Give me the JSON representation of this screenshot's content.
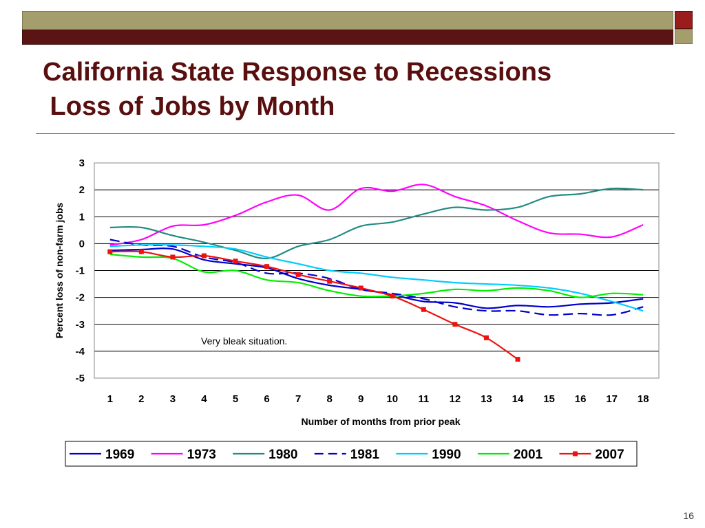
{
  "slide": {
    "title_line1": "California State Response to Recessions",
    "title_line2": " Loss of Jobs by Month",
    "page_number": "16"
  },
  "chart_data": {
    "type": "line",
    "title": "",
    "xlabel": "Number of months from prior peak",
    "ylabel": "Percent loss of non-farm jobs",
    "categories": [
      "1",
      "2",
      "3",
      "4",
      "5",
      "6",
      "7",
      "8",
      "9",
      "10",
      "11",
      "12",
      "13",
      "14",
      "15",
      "16",
      "17",
      "18"
    ],
    "ylim": [
      -5,
      3
    ],
    "yticks": [
      3,
      2,
      1,
      0,
      -1,
      -2,
      -3,
      -4,
      -5
    ],
    "grid": "horizontal",
    "legend_position": "bottom",
    "annotation": "Very bleak situation.",
    "series": [
      {
        "name": "1969",
        "color": "#0000cc",
        "dash": "solid",
        "marker": "none",
        "values": [
          -0.25,
          -0.22,
          -0.2,
          -0.6,
          -0.75,
          -0.9,
          -1.3,
          -1.55,
          -1.7,
          -1.9,
          -2.15,
          -2.2,
          -2.4,
          -2.3,
          -2.35,
          -2.25,
          -2.2,
          -2.05
        ]
      },
      {
        "name": "1973",
        "color": "#ff00ff",
        "dash": "solid",
        "marker": "none",
        "values": [
          -0.05,
          0.15,
          0.65,
          0.7,
          1.05,
          1.55,
          1.8,
          1.25,
          2.05,
          1.95,
          2.2,
          1.75,
          1.4,
          0.85,
          0.4,
          0.35,
          0.25,
          0.7
        ]
      },
      {
        "name": "1980",
        "color": "#218b82",
        "dash": "solid",
        "marker": "none",
        "values": [
          0.6,
          0.6,
          0.3,
          0.05,
          -0.25,
          -0.55,
          -0.1,
          0.15,
          0.65,
          0.8,
          1.1,
          1.35,
          1.25,
          1.35,
          1.75,
          1.85,
          2.05,
          2.0
        ]
      },
      {
        "name": "1981",
        "color": "#0000cc",
        "dash": "dashed",
        "marker": "none",
        "values": [
          0.15,
          -0.05,
          -0.1,
          -0.5,
          -0.7,
          -1.1,
          -1.1,
          -1.3,
          -1.7,
          -1.85,
          -2.05,
          -2.35,
          -2.5,
          -2.5,
          -2.65,
          -2.6,
          -2.65,
          -2.35
        ]
      },
      {
        "name": "1990",
        "color": "#00ccff",
        "dash": "solid",
        "marker": "none",
        "values": [
          -0.1,
          -0.05,
          -0.05,
          -0.1,
          -0.2,
          -0.5,
          -0.75,
          -1.0,
          -1.1,
          -1.25,
          -1.35,
          -1.45,
          -1.5,
          -1.55,
          -1.65,
          -1.85,
          -2.15,
          -2.5
        ]
      },
      {
        "name": "2001",
        "color": "#00ee00",
        "dash": "solid",
        "marker": "none",
        "values": [
          -0.4,
          -0.5,
          -0.55,
          -1.05,
          -1.0,
          -1.35,
          -1.45,
          -1.75,
          -1.95,
          -1.95,
          -1.85,
          -1.7,
          -1.75,
          -1.65,
          -1.75,
          -2.0,
          -1.85,
          -1.9
        ]
      },
      {
        "name": "2007",
        "color": "#ee1111",
        "dash": "solid",
        "marker": "square",
        "values": [
          -0.3,
          -0.3,
          -0.5,
          -0.45,
          -0.65,
          -0.85,
          -1.15,
          -1.4,
          -1.65,
          -1.95,
          -2.45,
          -3.0,
          -3.5,
          -4.3,
          null,
          null,
          null,
          null
        ]
      }
    ]
  }
}
